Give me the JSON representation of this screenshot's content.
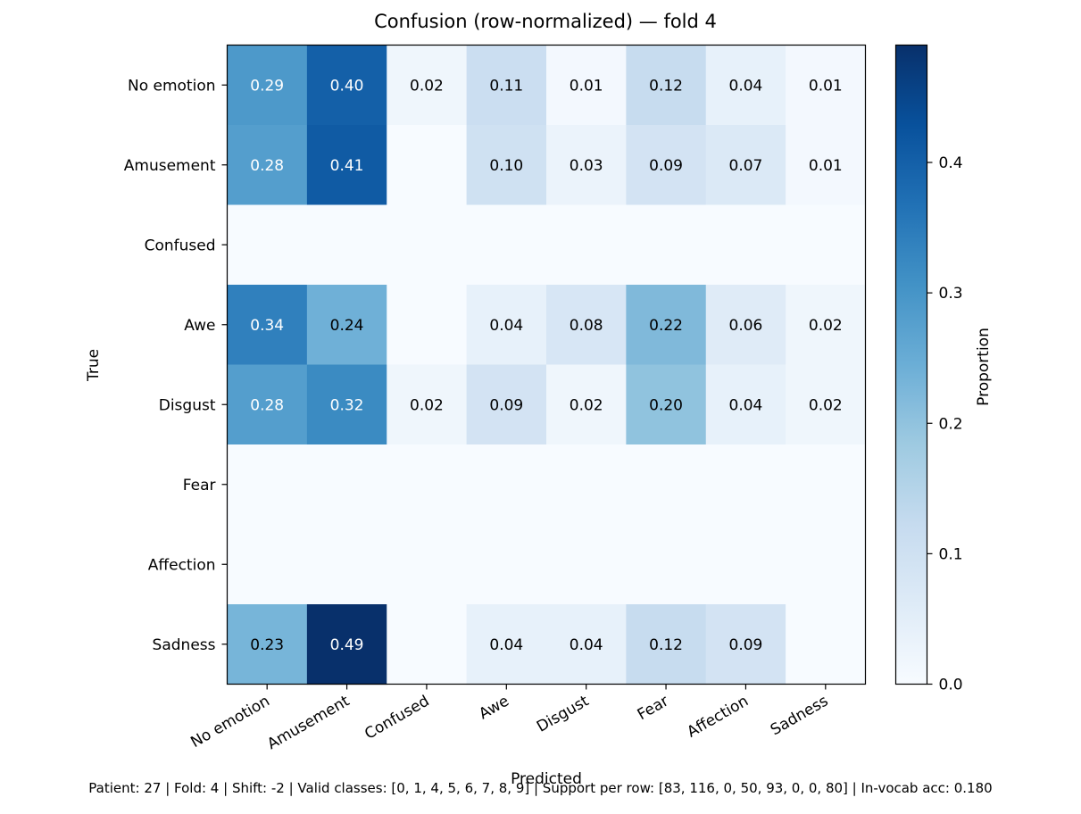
{
  "chart_data": {
    "type": "heatmap",
    "title": "Confusion (row-normalized) — fold 4",
    "xlabel": "Predicted",
    "ylabel": "True",
    "x_categories": [
      "No emotion",
      "Amusement",
      "Confused",
      "Awe",
      "Disgust",
      "Fear",
      "Affection",
      "Sadness"
    ],
    "y_categories": [
      "No emotion",
      "Amusement",
      "Confused",
      "Awe",
      "Disgust",
      "Fear",
      "Affection",
      "Sadness"
    ],
    "values": [
      [
        0.29,
        0.4,
        0.02,
        0.11,
        0.01,
        0.12,
        0.04,
        0.01
      ],
      [
        0.28,
        0.41,
        0,
        0.1,
        0.03,
        0.09,
        0.07,
        0.01
      ],
      [
        0,
        0,
        0,
        0,
        0,
        0,
        0,
        0
      ],
      [
        0.34,
        0.24,
        0,
        0.04,
        0.08,
        0.22,
        0.06,
        0.02
      ],
      [
        0.28,
        0.32,
        0.02,
        0.09,
        0.02,
        0.2,
        0.04,
        0.02
      ],
      [
        0,
        0,
        0,
        0,
        0,
        0,
        0,
        0
      ],
      [
        0,
        0,
        0,
        0,
        0,
        0,
        0,
        0
      ],
      [
        0.23,
        0.49,
        0,
        0.04,
        0.04,
        0.12,
        0.09,
        0
      ]
    ],
    "colorbar": {
      "label": "Proportion",
      "range": [
        0,
        0.49
      ],
      "ticks": [
        0.0,
        0.1,
        0.2,
        0.3,
        0.4
      ],
      "tick_labels": [
        "0.0",
        "0.1",
        "0.2",
        "0.3",
        "0.4"
      ],
      "colormap": "Blues"
    },
    "footer": "Patient: 27 | Fold: 4 | Shift: -2 | Valid classes: [0, 1, 4, 5, 6, 7, 8, 9] | Support per row: [83, 116, 0, 50, 93, 0, 0, 80] | In-vocab acc: 0.180"
  }
}
